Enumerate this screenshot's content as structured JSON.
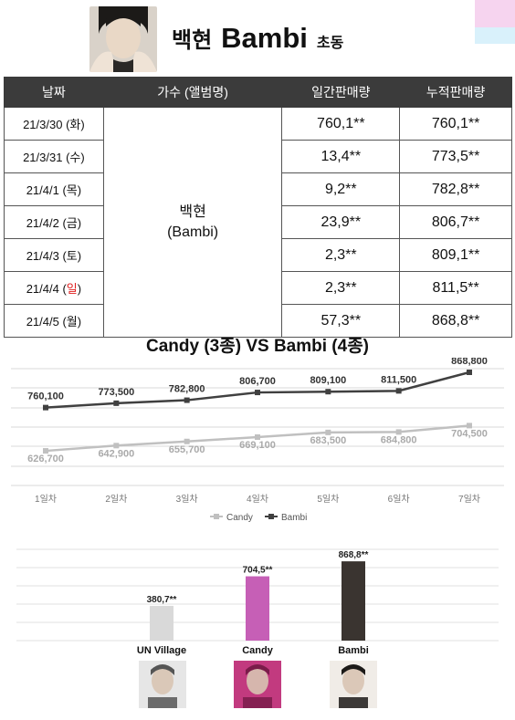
{
  "header": {
    "artist": "백현",
    "album": "Bambi",
    "suffix": "초동"
  },
  "table": {
    "headers": [
      "날짜",
      "가수 (앨범명)",
      "일간판매량",
      "누적판매량"
    ],
    "artist_name": "백현",
    "artist_album": "(Bambi)",
    "rows": [
      {
        "date_pre": "21/3/30 (",
        "dow": "화",
        "date_post": ")",
        "daily": "760,1**",
        "total": "760,1**"
      },
      {
        "date_pre": "21/3/31 (",
        "dow": "수",
        "date_post": ")",
        "daily": "13,4**",
        "total": "773,5**"
      },
      {
        "date_pre": "21/4/1 (",
        "dow": "목",
        "date_post": ")",
        "daily": "9,2**",
        "total": "782,8**"
      },
      {
        "date_pre": "21/4/2 (",
        "dow": "금",
        "date_post": ")",
        "daily": "23,9**",
        "total": "806,7**"
      },
      {
        "date_pre": "21/4/3 (",
        "dow": "토",
        "date_post": ")",
        "daily": "2,3**",
        "total": "809,1**"
      },
      {
        "date_pre": "21/4/4 (",
        "dow": "일",
        "date_post": ")",
        "daily": "2,3**",
        "total": "811,5**",
        "highlight": true
      },
      {
        "date_pre": "21/4/5 (",
        "dow": "월",
        "date_post": ")",
        "daily": "57,3**",
        "total": "868,8**"
      }
    ]
  },
  "colors": {
    "header_bg": "#3b3b3b",
    "candy_line": "#c0c0c0",
    "bambi_line": "#404040",
    "candy_bar": "#c65fb6",
    "bambi_bar": "#3a3430",
    "village_bar": "#d9d9d9",
    "sunday": "#e02020"
  },
  "chart_data": [
    {
      "type": "line",
      "title": "Candy (3종) VS Bambi (4종)",
      "categories": [
        "1일차",
        "2일차",
        "3일차",
        "4일차",
        "5일차",
        "6일차",
        "7일차"
      ],
      "series": [
        {
          "name": "Candy",
          "values": [
            626700,
            642900,
            655700,
            669100,
            683500,
            684800,
            704500
          ],
          "labels": [
            "626,700",
            "642,900",
            "655,700",
            "669,100",
            "683,500",
            "684,800",
            "704,500"
          ]
        },
        {
          "name": "Bambi",
          "values": [
            760100,
            773500,
            782800,
            806700,
            809100,
            811500,
            868800
          ],
          "labels": [
            "760,100",
            "773,500",
            "782,800",
            "806,700",
            "809,100",
            "811,500",
            "868,800"
          ]
        }
      ],
      "legend": "bottom",
      "grid": true
    },
    {
      "type": "bar",
      "categories": [
        "UN Village",
        "Candy",
        "Bambi"
      ],
      "values": [
        380700,
        704500,
        868800
      ],
      "labels": [
        "380,7**",
        "704,5**",
        "868,8**"
      ],
      "grid": true
    }
  ]
}
